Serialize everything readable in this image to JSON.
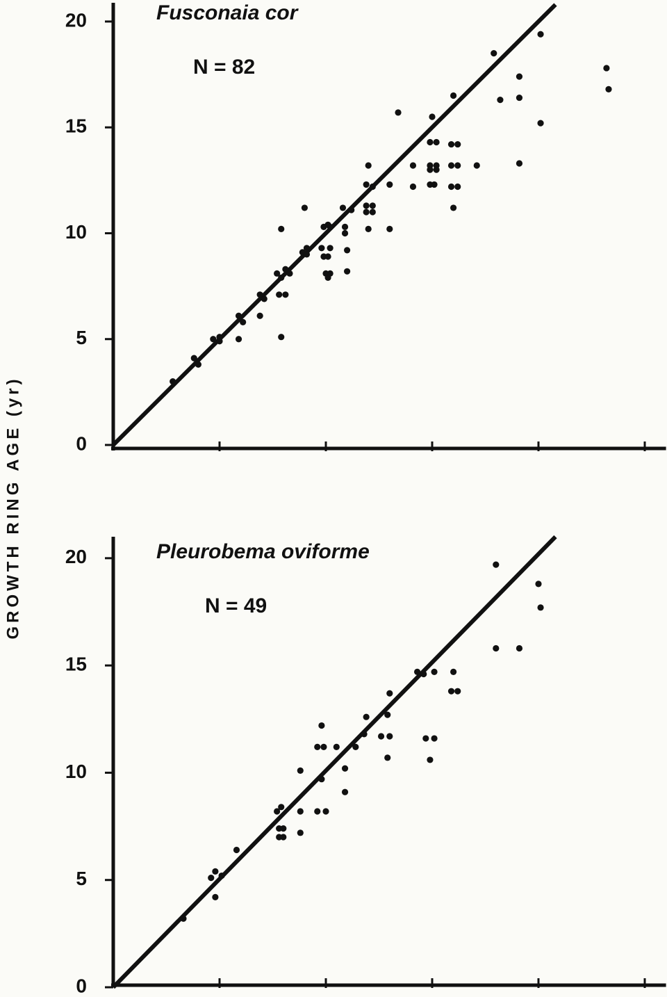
{
  "chart_data": [
    {
      "type": "scatter",
      "title": "Fusconaia cor",
      "annotation": "N = 82",
      "ylabel": "GROWTH RING AGE (yr)",
      "color": "#111111",
      "x": [
        2.8,
        3.8,
        4.0,
        4.7,
        5.0,
        5.0,
        5.9,
        5.9,
        6.1,
        6.9,
        6.9,
        7.1,
        7.7,
        7.9,
        7.9,
        7.8,
        8.1,
        7.9,
        8.1,
        8.3,
        9.0,
        8.9,
        9.1,
        9.1,
        9.8,
        9.9,
        9.9,
        10.1,
        10.0,
        10.1,
        10.2,
        10.2,
        10.2,
        10.1,
        10.8,
        10.9,
        10.9,
        11.0,
        11.0,
        11.2,
        11.9,
        12.0,
        11.9,
        12.2,
        11.9,
        12.2,
        12.0,
        12.2,
        13.0,
        13.0,
        13.4,
        14.1,
        14.1,
        14.9,
        15.2,
        14.9,
        15.2,
        14.9,
        15.1,
        15.0,
        14.9,
        15.2,
        15.9,
        16.2,
        15.9,
        16.2,
        15.9,
        16.2,
        16.0,
        16.0,
        17.1,
        17.9,
        18.2,
        19.1,
        19.1,
        19.1,
        20.1,
        20.1,
        23.2,
        23.3
      ],
      "values": [
        3.0,
        4.1,
        3.8,
        5.0,
        5.1,
        4.9,
        6.1,
        5.0,
        5.8,
        7.1,
        6.1,
        6.9,
        8.1,
        5.1,
        10.2,
        7.1,
        7.1,
        7.9,
        8.3,
        8.1,
        11.2,
        9.1,
        9.3,
        9.0,
        9.3,
        10.3,
        8.9,
        8.9,
        8.1,
        7.9,
        8.1,
        10.3,
        9.3,
        10.4,
        11.2,
        10.3,
        10.0,
        9.2,
        8.2,
        11.1,
        12.3,
        13.2,
        11.3,
        11.3,
        11.0,
        11.0,
        10.2,
        12.2,
        12.3,
        10.2,
        15.7,
        13.2,
        12.2,
        13.2,
        13.2,
        13.0,
        13.0,
        12.3,
        12.3,
        15.5,
        14.3,
        14.3,
        13.2,
        13.2,
        14.2,
        14.2,
        12.2,
        12.2,
        11.2,
        16.5,
        13.2,
        18.5,
        16.3,
        17.4,
        16.4,
        13.3,
        19.4,
        15.2,
        17.8,
        16.8
      ],
      "fit_line": {
        "x": [
          0,
          20.8
        ],
        "values": [
          0,
          20.8
        ]
      },
      "xlim": [
        0,
        26
      ],
      "ylim": [
        0,
        21
      ],
      "xticks": [
        5,
        10,
        15,
        20,
        25
      ],
      "yticks": [
        0,
        5,
        10,
        15,
        20
      ]
    },
    {
      "type": "scatter",
      "title": "Pleurobema oviforme",
      "annotation": "N = 49",
      "color": "#111111",
      "x": [
        3.3,
        4.6,
        4.8,
        4.8,
        5.1,
        5.8,
        7.7,
        7.9,
        7.8,
        8.0,
        7.8,
        8.0,
        8.8,
        8.8,
        8.8,
        9.8,
        9.6,
        9.9,
        9.8,
        9.6,
        10.0,
        10.9,
        10.9,
        10.5,
        11.4,
        11.8,
        11.9,
        12.6,
        13.0,
        12.9,
        13.0,
        12.9,
        14.3,
        14.6,
        14.7,
        15.1,
        14.9,
        15.1,
        15.9,
        16.2,
        16.0,
        18.0,
        18.0,
        19.1,
        20.0,
        20.1
      ],
      "values": [
        3.2,
        5.1,
        5.4,
        4.2,
        5.2,
        6.4,
        8.2,
        8.4,
        7.4,
        7.4,
        7.0,
        7.0,
        10.1,
        8.2,
        7.2,
        9.7,
        11.2,
        11.2,
        12.2,
        8.2,
        8.2,
        10.2,
        9.1,
        11.2,
        11.2,
        11.8,
        12.6,
        11.7,
        11.7,
        12.7,
        13.7,
        10.7,
        14.7,
        14.6,
        11.6,
        11.6,
        10.6,
        14.7,
        13.8,
        13.8,
        14.7,
        19.7,
        15.8,
        15.8,
        18.8,
        17.7
      ],
      "fit_line": {
        "x": [
          0,
          20.8
        ],
        "values": [
          0,
          21.0
        ]
      },
      "xlim": [
        0,
        26
      ],
      "ylim": [
        0,
        21
      ],
      "xticks": [
        5,
        10,
        15,
        20,
        25
      ],
      "yticks": [
        0,
        5,
        10,
        15,
        20
      ]
    }
  ]
}
